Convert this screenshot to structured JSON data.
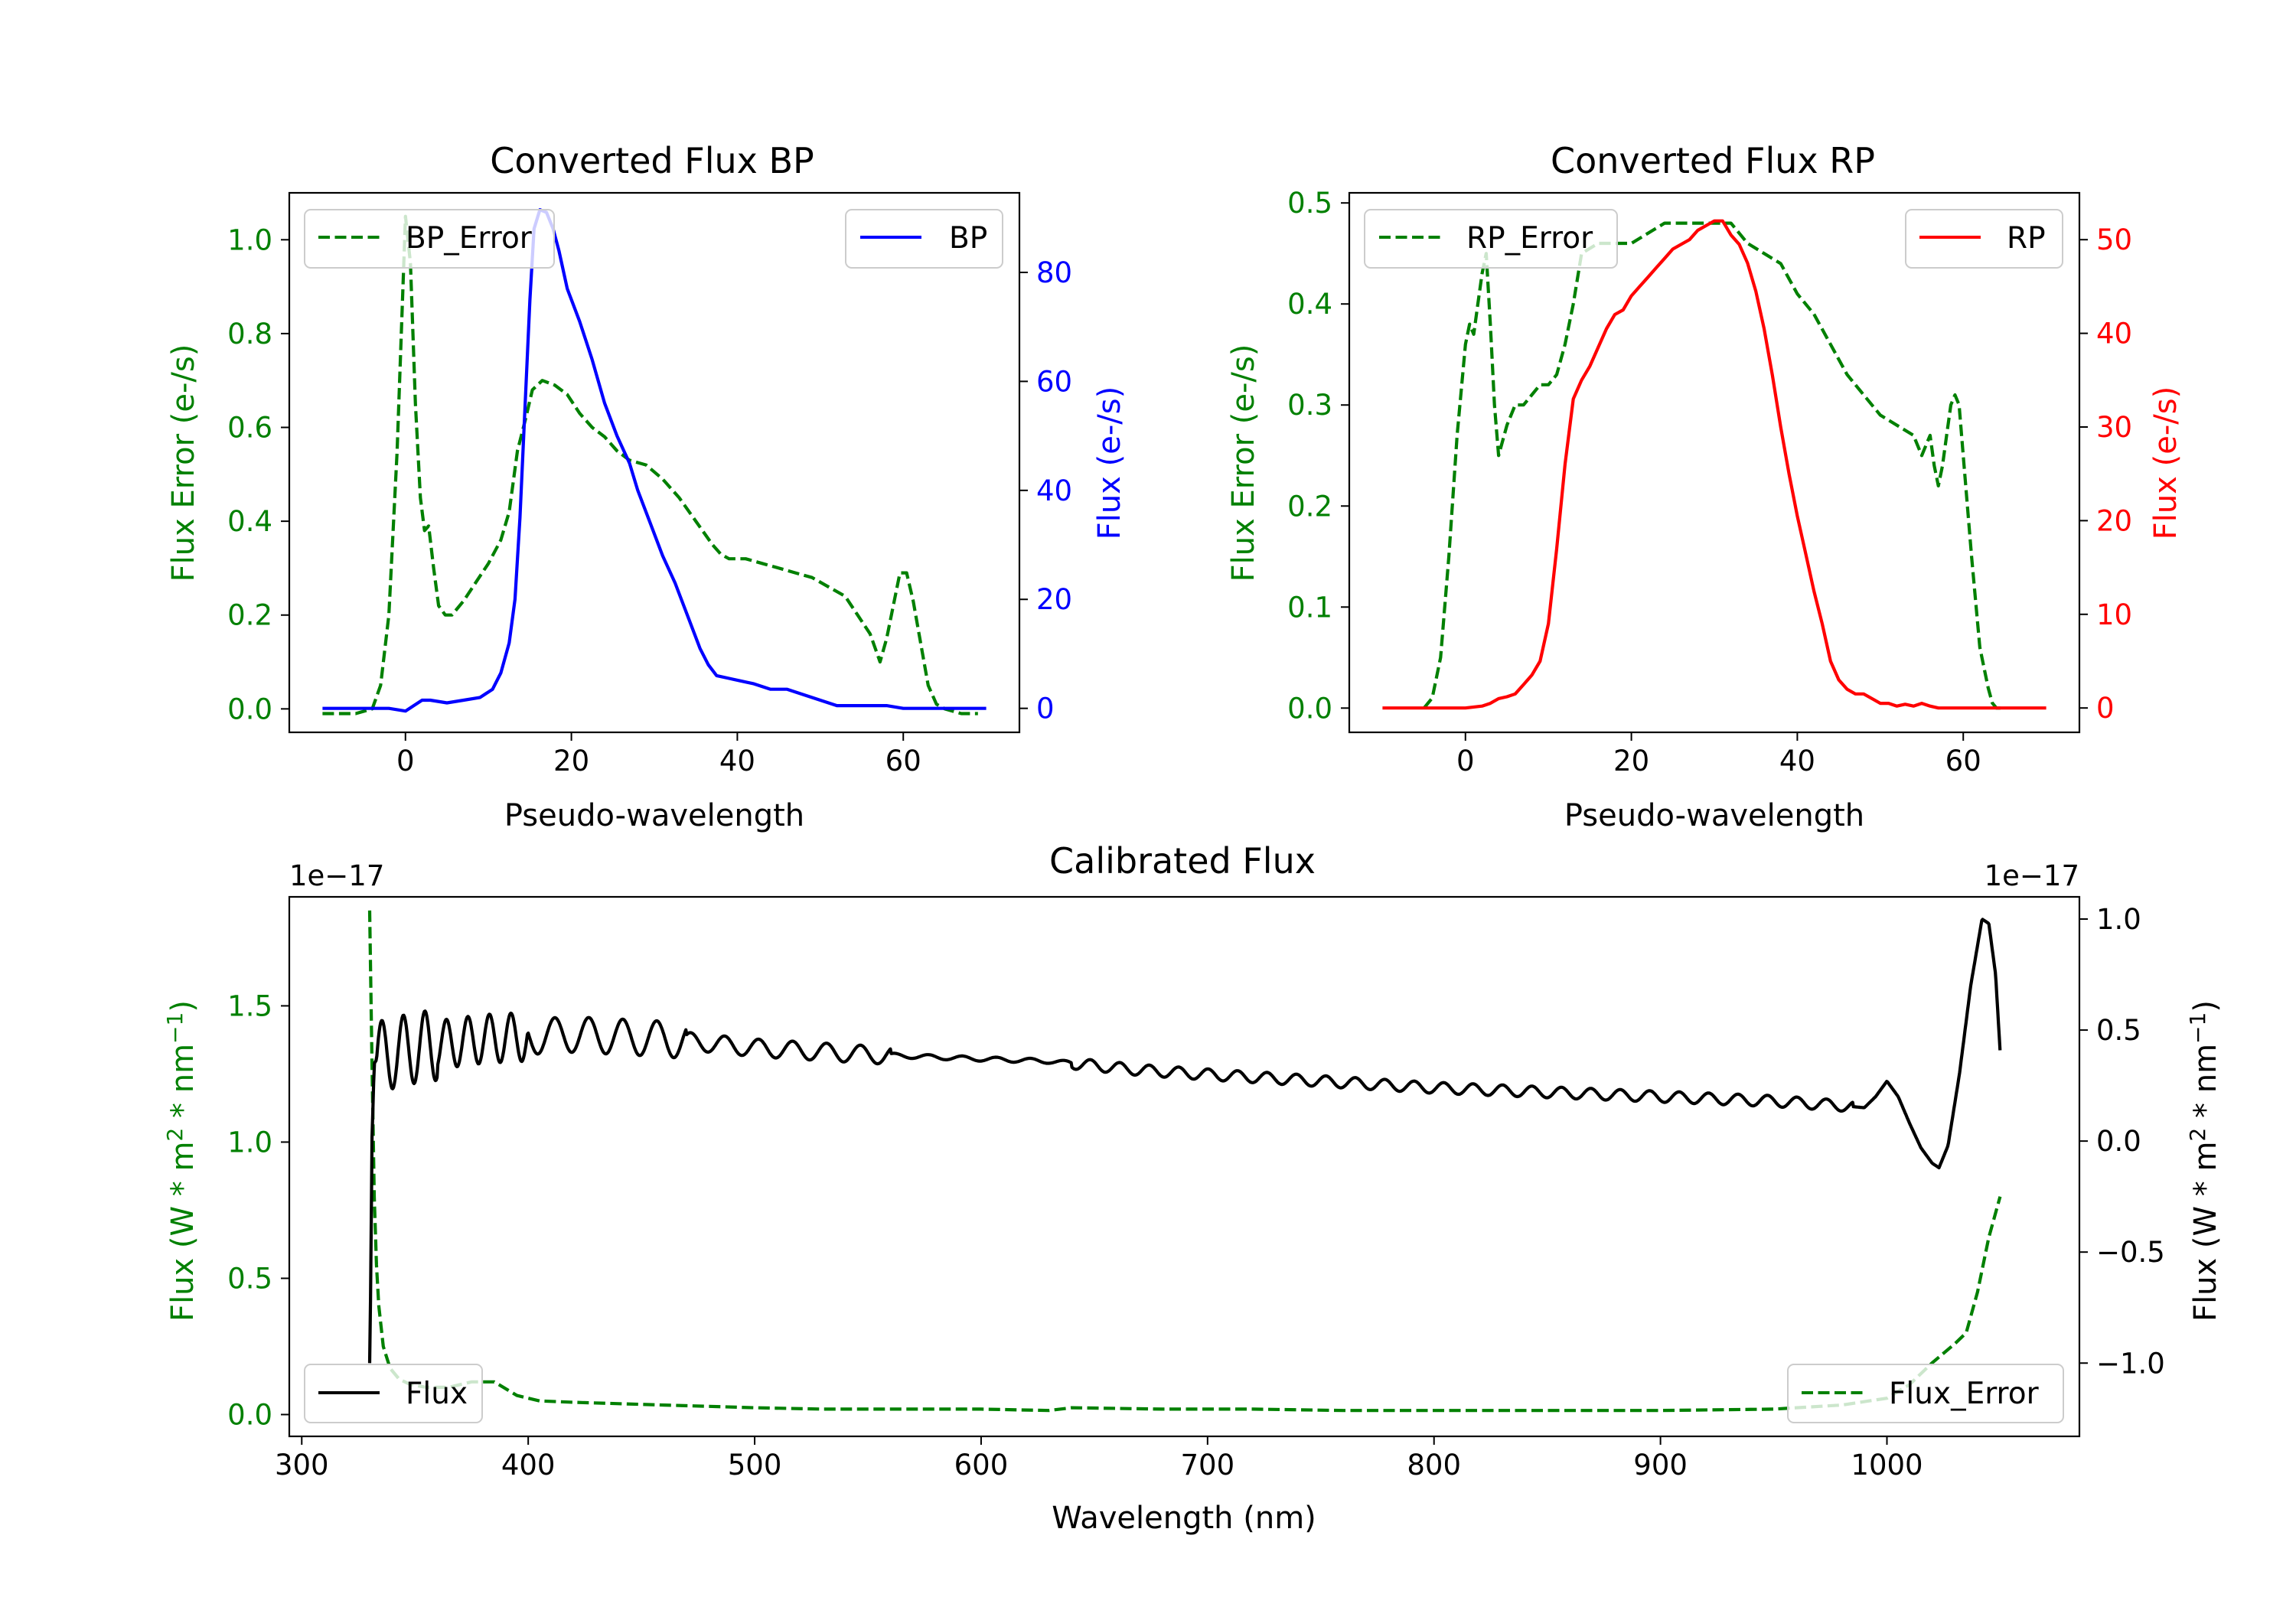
{
  "colors": {
    "bp_error": "#008000",
    "bp": "#0000ff",
    "rp_error": "#008000",
    "rp": "#ff0000",
    "flux": "#000000",
    "flux_error": "#008000"
  },
  "chart_data": [
    {
      "id": "bp",
      "type": "line",
      "title": "Converted Flux BP",
      "xlabel": "Pseudo-wavelength",
      "ylabel_left": "Flux Error (e-/s)",
      "ylabel_right": "Flux (e-/s)",
      "xlim": [
        -14,
        74
      ],
      "ylim_left": [
        -0.05,
        1.1
      ],
      "ylim_right": [
        -4.4,
        94.6
      ],
      "xticks": [
        0,
        20,
        40,
        60
      ],
      "yticks_left": [
        0.0,
        0.2,
        0.4,
        0.6,
        0.8,
        1.0
      ],
      "yticks_right": [
        0,
        20,
        40,
        60,
        80
      ],
      "legend_left": "BP_Error",
      "legend_right": "BP",
      "series": [
        {
          "name": "BP_Error",
          "axis": "left",
          "style": "dashed",
          "color": "#008000",
          "x": [
            -10,
            -6,
            -4,
            -3,
            -2,
            -1,
            0,
            0.6,
            1.2,
            1.8,
            2.3,
            2.8,
            3.4,
            4,
            4.8,
            5.6,
            7,
            8.5,
            10,
            11.5,
            12.5,
            13.5,
            14.5,
            15.3,
            16.5,
            18,
            19.5,
            21,
            22.5,
            24,
            25.5,
            27,
            29,
            31,
            33,
            35,
            37,
            38,
            39,
            41,
            43,
            45,
            47,
            49,
            51,
            53,
            54.5,
            56,
            57.2,
            58,
            58.8,
            59.6,
            60.4,
            61.2,
            62,
            63,
            64,
            65,
            67,
            69
          ],
          "y": [
            -0.01,
            -0.01,
            0.0,
            0.05,
            0.2,
            0.55,
            1.05,
            0.95,
            0.65,
            0.45,
            0.38,
            0.39,
            0.3,
            0.22,
            0.2,
            0.2,
            0.23,
            0.27,
            0.31,
            0.36,
            0.42,
            0.55,
            0.62,
            0.68,
            0.7,
            0.69,
            0.67,
            0.63,
            0.6,
            0.58,
            0.55,
            0.53,
            0.52,
            0.49,
            0.45,
            0.4,
            0.35,
            0.33,
            0.32,
            0.32,
            0.31,
            0.3,
            0.29,
            0.28,
            0.26,
            0.24,
            0.2,
            0.16,
            0.1,
            0.15,
            0.22,
            0.29,
            0.29,
            0.23,
            0.15,
            0.05,
            0.01,
            0.0,
            -0.01,
            -0.01
          ]
        },
        {
          "name": "BP",
          "axis": "right",
          "style": "solid",
          "color": "#0000ff",
          "x": [
            -10,
            -5,
            -2,
            0,
            1,
            2,
            3,
            5,
            7,
            9,
            10.5,
            11.5,
            12.5,
            13.2,
            13.8,
            14.4,
            15,
            15.5,
            16.2,
            17,
            17.8,
            18.5,
            19.5,
            21,
            22.5,
            24,
            25.5,
            27,
            28,
            29.5,
            31,
            32.5,
            34,
            35.5,
            36.5,
            37.5,
            39,
            40.5,
            42,
            44,
            46,
            48,
            50,
            52,
            54,
            56,
            58,
            60,
            62,
            65,
            67,
            70
          ],
          "y": [
            0,
            0,
            0,
            -0.5,
            0.5,
            1.5,
            1.5,
            1.0,
            1.5,
            2.0,
            3.5,
            6.5,
            12,
            20,
            35,
            55,
            75,
            88,
            91.5,
            91,
            88,
            84,
            77,
            71,
            64,
            56,
            50,
            45,
            40,
            34,
            28,
            23,
            17,
            11,
            8,
            6,
            5.5,
            5,
            4.5,
            3.5,
            3.5,
            2.5,
            1.5,
            0.5,
            0.5,
            0.5,
            0.5,
            0,
            0,
            0,
            0,
            0
          ]
        }
      ]
    },
    {
      "id": "rp",
      "type": "line",
      "title": "Converted Flux RP",
      "xlabel": "Pseudo-wavelength",
      "ylabel_left": "Flux Error (e-/s)",
      "ylabel_right": "Flux (e-/s)",
      "xlim": [
        -14,
        74
      ],
      "ylim_left": [
        -0.024,
        0.51
      ],
      "ylim_right": [
        -2.6,
        55
      ],
      "xticks": [
        0,
        20,
        40,
        60
      ],
      "yticks_left": [
        0.0,
        0.1,
        0.2,
        0.3,
        0.4,
        0.5
      ],
      "yticks_right": [
        0,
        10,
        20,
        30,
        40,
        50
      ],
      "legend_left": "RP_Error",
      "legend_right": "RP",
      "series": [
        {
          "name": "RP_Error",
          "axis": "left",
          "style": "dashed",
          "color": "#008000",
          "x": [
            -5,
            -4,
            -3,
            -2,
            -1,
            0,
            0.5,
            1,
            1.5,
            2,
            2.5,
            3,
            3.5,
            4,
            5,
            6,
            7,
            8,
            9,
            10,
            11,
            12,
            13,
            14,
            16,
            18,
            20,
            22,
            24,
            26,
            28,
            30,
            32,
            34,
            36,
            38,
            40,
            42,
            44,
            46,
            48,
            50,
            52,
            54,
            55,
            56,
            56.5,
            57,
            57.5,
            58,
            58.5,
            59,
            59.5,
            60,
            61,
            62,
            63,
            63.5,
            64,
            65
          ],
          "y": [
            0.0,
            0.01,
            0.05,
            0.15,
            0.27,
            0.36,
            0.38,
            0.37,
            0.4,
            0.43,
            0.45,
            0.38,
            0.3,
            0.25,
            0.28,
            0.3,
            0.3,
            0.31,
            0.32,
            0.32,
            0.33,
            0.36,
            0.4,
            0.45,
            0.46,
            0.46,
            0.46,
            0.47,
            0.48,
            0.48,
            0.48,
            0.48,
            0.48,
            0.46,
            0.45,
            0.44,
            0.41,
            0.39,
            0.36,
            0.33,
            0.31,
            0.29,
            0.28,
            0.27,
            0.25,
            0.27,
            0.24,
            0.22,
            0.24,
            0.27,
            0.3,
            0.31,
            0.3,
            0.25,
            0.15,
            0.06,
            0.02,
            0.005,
            0.0,
            0.0
          ],
          "wiggle": true
        },
        {
          "name": "RP",
          "axis": "right",
          "style": "solid",
          "color": "#ff0000",
          "x": [
            -10,
            -5,
            0,
            2,
            3,
            4,
            5,
            6,
            7,
            8,
            9,
            10,
            11,
            12,
            13,
            14,
            15,
            16,
            17,
            18,
            19,
            20,
            21,
            22,
            23,
            24,
            25,
            26,
            27,
            28,
            29,
            30,
            31,
            32,
            33,
            34,
            35,
            36,
            37,
            38,
            39,
            40,
            41,
            42,
            43,
            44,
            45,
            46,
            47,
            48,
            49,
            50,
            51,
            52,
            53,
            54,
            55,
            56,
            57,
            58,
            59,
            60,
            61,
            62,
            63,
            65,
            70
          ],
          "y": [
            0,
            0,
            0,
            0.2,
            0.5,
            1.0,
            1.2,
            1.5,
            2.5,
            3.5,
            5,
            9,
            17,
            26,
            33,
            35,
            36.5,
            38.5,
            40.5,
            42,
            42.5,
            44,
            45,
            46,
            47,
            48,
            49,
            49.5,
            50,
            51,
            51.5,
            52,
            52,
            50.5,
            49.5,
            47.5,
            44.5,
            40.5,
            35.5,
            30,
            25,
            20.5,
            16.5,
            12.5,
            9,
            5,
            3,
            2,
            1.5,
            1.5,
            1,
            0.5,
            0.5,
            0.2,
            0.4,
            0.2,
            0.5,
            0.2,
            0,
            0,
            0,
            0,
            0,
            0,
            0,
            0,
            0
          ],
          "wiggle": true
        }
      ]
    },
    {
      "id": "calibrated",
      "type": "line",
      "title": "Calibrated Flux",
      "xlabel": "Wavelength (nm)",
      "ylabel_left": "Flux (W * m2 * nm-1)",
      "ylabel_right": "Flux (W * m2 * nm-1)",
      "scale_left": "1e−17",
      "scale_right": "1e−17",
      "xlim": [
        294.5,
        1085
      ],
      "ylim_left": [
        -0.08,
        1.9
      ],
      "ylim_right": [
        -1.33,
        1.1
      ],
      "xticks": [
        300,
        400,
        500,
        600,
        700,
        800,
        900,
        1000
      ],
      "yticks_left": [
        0.0,
        0.5,
        1.0,
        1.5
      ],
      "ytick_labels_left": [
        "0.0",
        "0.5",
        "1.0",
        "1.5"
      ],
      "yticks_right": [
        -1.0,
        -0.5,
        0.0,
        0.5,
        1.0
      ],
      "ytick_labels_right": [
        "−1.0",
        "−0.5",
        "0.0",
        "0.5",
        "1.0"
      ],
      "legend_left": "Flux",
      "legend_right": "Flux_Error",
      "series": [
        {
          "name": "Flux_Error",
          "axis": "left",
          "style": "dashed",
          "color": "#008000",
          "x": [
            330,
            331,
            332,
            333,
            334,
            336,
            339,
            343,
            348,
            355,
            365,
            375,
            385,
            395,
            405,
            420,
            440,
            460,
            480,
            500,
            530,
            560,
            600,
            630,
            640,
            680,
            720,
            760,
            800,
            850,
            900,
            950,
            980,
            1000,
            1010,
            1020,
            1030,
            1035,
            1040,
            1045,
            1050
          ],
          "y": [
            1.85,
            1.3,
            0.8,
            0.55,
            0.4,
            0.25,
            0.17,
            0.13,
            0.11,
            0.1,
            0.1,
            0.12,
            0.12,
            0.07,
            0.05,
            0.045,
            0.04,
            0.035,
            0.03,
            0.025,
            0.02,
            0.02,
            0.02,
            0.015,
            0.025,
            0.02,
            0.02,
            0.015,
            0.015,
            0.015,
            0.015,
            0.02,
            0.035,
            0.06,
            0.11,
            0.19,
            0.26,
            0.3,
            0.45,
            0.65,
            0.8
          ]
        },
        {
          "name": "Flux",
          "axis": "right",
          "style": "solid",
          "color": "#000000",
          "x": [
            330,
            330.5,
            331,
            332,
            334,
            350,
            380,
            420,
            460,
            500,
            550,
            600,
            630,
            640,
            670,
            700,
            750,
            800,
            850,
            900,
            950,
            980,
            990,
            995,
            1000,
            1005,
            1010,
            1015,
            1020,
            1023,
            1027,
            1032,
            1037,
            1042,
            1045,
            1048,
            1050
          ],
          "y": [
            -1.0,
            -0.6,
            0.0,
            0.35,
            0.38,
            0.42,
            0.46,
            0.48,
            0.46,
            0.42,
            0.39,
            0.37,
            0.36,
            0.35,
            0.32,
            0.3,
            0.27,
            0.24,
            0.22,
            0.2,
            0.18,
            0.16,
            0.15,
            0.2,
            0.27,
            0.2,
            0.08,
            -0.03,
            -0.1,
            -0.12,
            -0.02,
            0.3,
            0.7,
            1.0,
            0.98,
            0.75,
            0.4
          ],
          "oscillation": true
        }
      ]
    }
  ]
}
